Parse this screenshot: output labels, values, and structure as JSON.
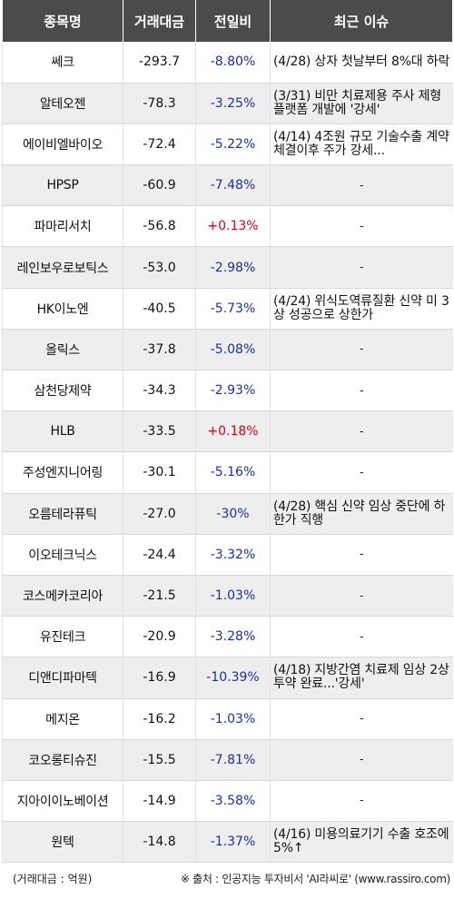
{
  "header": {
    "name": "종목명",
    "volume": "거래대금",
    "change": "전일비",
    "issue": "최근 이슈"
  },
  "rows": [
    {
      "name": "쎄크",
      "volume": "-293.7",
      "change": "-8.80%",
      "dir": "down",
      "issue": "(4/28) 상자 첫날부터 8%대 하락"
    },
    {
      "name": "알테오젠",
      "volume": "-78.3",
      "change": "-3.25%",
      "dir": "down",
      "issue": "(3/31) 비만 치료제용 주사 제형 플랫폼 개발에 '강세'"
    },
    {
      "name": "에이비엘바이오",
      "volume": "-72.4",
      "change": "-5.22%",
      "dir": "down",
      "issue": "(4/14) 4조원 규모 기술수출 계약체결이후 주가 강세..."
    },
    {
      "name": "HPSP",
      "volume": "-60.9",
      "change": "-7.48%",
      "dir": "down",
      "issue": "-"
    },
    {
      "name": "파마리서치",
      "volume": "-56.8",
      "change": "+0.13%",
      "dir": "up",
      "issue": "-"
    },
    {
      "name": "레인보우로보틱스",
      "volume": "-53.0",
      "change": "-2.98%",
      "dir": "down",
      "issue": "-"
    },
    {
      "name": "HK이노엔",
      "volume": "-40.5",
      "change": "-5.73%",
      "dir": "down",
      "issue": "(4/24) 위식도역류질환 신약 미 3상 성공으로 상한가"
    },
    {
      "name": "올릭스",
      "volume": "-37.8",
      "change": "-5.08%",
      "dir": "down",
      "issue": "-"
    },
    {
      "name": "삼천당제약",
      "volume": "-34.3",
      "change": "-2.93%",
      "dir": "down",
      "issue": "-"
    },
    {
      "name": "HLB",
      "volume": "-33.5",
      "change": "+0.18%",
      "dir": "up",
      "issue": "-"
    },
    {
      "name": "주성엔지니어링",
      "volume": "-30.1",
      "change": "-5.16%",
      "dir": "down",
      "issue": "-"
    },
    {
      "name": "오름테라퓨틱",
      "volume": "-27.0",
      "change": "-30%",
      "dir": "down",
      "issue": "(4/28) 핵심 신약 임상 중단에 하한가 직행"
    },
    {
      "name": "이오테크닉스",
      "volume": "-24.4",
      "change": "-3.32%",
      "dir": "down",
      "issue": "-"
    },
    {
      "name": "코스메카코리아",
      "volume": "-21.5",
      "change": "-1.03%",
      "dir": "down",
      "issue": "-"
    },
    {
      "name": "유진테크",
      "volume": "-20.9",
      "change": "-3.28%",
      "dir": "down",
      "issue": "-"
    },
    {
      "name": "디앤디파마텍",
      "volume": "-16.9",
      "change": "-10.39%",
      "dir": "down",
      "issue": "(4/18) 지방간염 치료제 임상 2상 투약 완료...'강세'"
    },
    {
      "name": "메지온",
      "volume": "-16.2",
      "change": "-1.03%",
      "dir": "down",
      "issue": "-"
    },
    {
      "name": "코오롱티슈진",
      "volume": "-15.5",
      "change": "-7.81%",
      "dir": "down",
      "issue": "-"
    },
    {
      "name": "지아이이노베이션",
      "volume": "-14.9",
      "change": "-3.58%",
      "dir": "down",
      "issue": "-"
    },
    {
      "name": "원텍",
      "volume": "-14.8",
      "change": "-1.37%",
      "dir": "down",
      "issue": "(4/16) 미용의료기기 수출 호조에 5%↑"
    }
  ],
  "footer": {
    "unit": "(거래대금 : 억원)",
    "source": "※ 출처 : 인공지능 투자비서 'AI라씨로' (www.rassiro.com)"
  },
  "colors": {
    "header_bg": "#4b4b4b",
    "down": "#1a2fb0",
    "up": "#e0001b",
    "stripe": "#eeeeee"
  }
}
